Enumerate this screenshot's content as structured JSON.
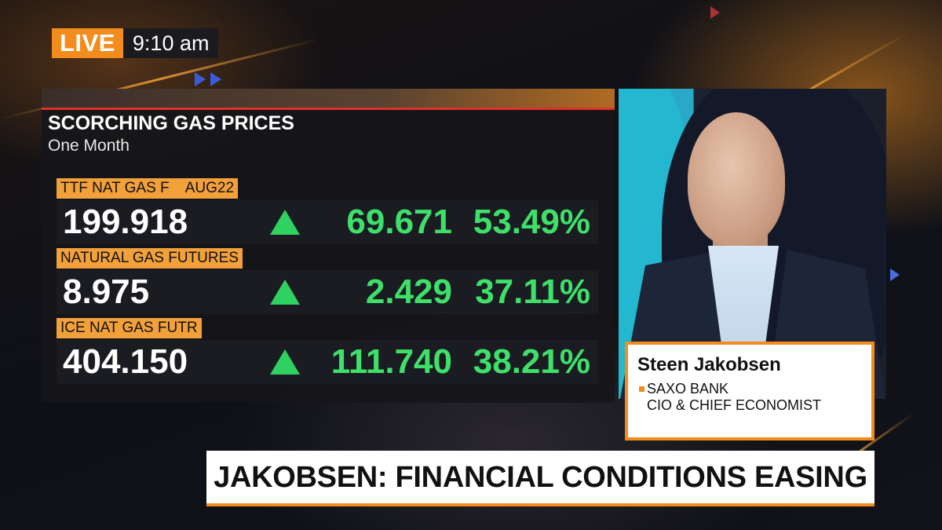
{
  "bug": {
    "live_label": "LIVE",
    "time": "9:10 am"
  },
  "panel": {
    "title": "SCORCHING GAS PRICES",
    "subtitle": "One Month",
    "rows": [
      {
        "label": "TTF NAT GAS F    AUG22",
        "price": "199.918",
        "direction": "up",
        "change": "69.671",
        "pct": "53.49%"
      },
      {
        "label": "NATURAL GAS FUTURES",
        "price": "8.975",
        "direction": "up",
        "change": "2.429",
        "pct": "37.11%"
      },
      {
        "label": "ICE NAT GAS FUTR",
        "price": "404.150",
        "direction": "up",
        "change": "111.740",
        "pct": "38.21%"
      }
    ]
  },
  "guest": {
    "name": "Steen Jakobsen",
    "organization": "SAXO BANK",
    "title": "CIO & CHIEF ECONOMIST"
  },
  "headline": "JAKOBSEN: FINANCIAL CONDITIONS EASING",
  "colors": {
    "accent": "#f28c1c",
    "positive": "#3ee06a",
    "label_bg": "#f2a03a",
    "title_rule": "#e0302a"
  }
}
